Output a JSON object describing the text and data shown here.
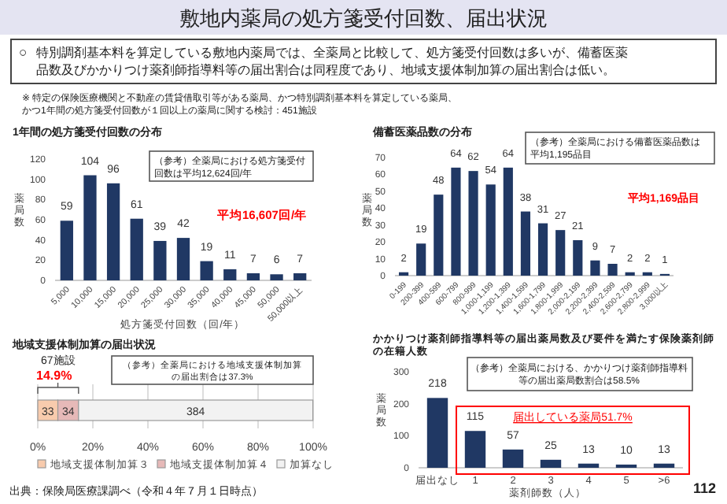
{
  "chart_data": [
    {
      "type": "other",
      "title": "敷地内薬局の処方箋受付回数、届出状況",
      "annotations": [
        "○",
        "特別調剤基本料を算定している敷地内薬局では、全薬局と比較して、処方箋受付回数は多いが、備蓄医薬品数及びかかりつけ薬剤師指導料等の届出割合は同程度であり、地域支援体制加算の届出割合は低い。",
        "※ 特定の保険医療機関と不動産の賃貸借取引等がある薬局、かつ特別調剤基本料を算定している薬局、かつ1年間の処方箋受付回数が１回以上の薬局に関する検討：451施設",
        "出典：保険局医療課調べ（令和４年７月１日時点）",
        "112"
      ]
    },
    {
      "type": "bar",
      "title": "1年間の処方箋受付回数の分布",
      "xlabel": "処方箋受付回数（回/年）",
      "ylabel": "薬局数",
      "categories": [
        "5,000",
        "10,000",
        "15,000",
        "20,000",
        "25,000",
        "30,000",
        "35,000",
        "40,000",
        "45,000",
        "50,000",
        "50,000以上"
      ],
      "values": [
        59,
        104,
        96,
        61,
        39,
        42,
        19,
        11,
        7,
        6,
        7
      ],
      "color": "#203864",
      "ylim": [
        0,
        120
      ],
      "yticks": [
        0,
        20,
        40,
        60,
        80,
        100,
        120
      ],
      "data_labels": true,
      "annotations": [
        "（参考）全薬局における処方箋受付回数は平均12,624回/年",
        "平均16,607回/年"
      ]
    },
    {
      "type": "bar",
      "title": "備蓄医薬品数の分布",
      "ylabel": "薬局数",
      "categories": [
        "0-199",
        "200-399",
        "400-599",
        "600-799",
        "800-999",
        "1,000-1,199",
        "1,200-1,399",
        "1,400-1,599",
        "1,600-1,799",
        "1,800-1,999",
        "2,000-2,199",
        "2,200-2,399",
        "2,400-2,599",
        "2,600-2,799",
        "2,800-2,999",
        "3,000以上"
      ],
      "values": [
        2,
        19,
        48,
        64,
        62,
        54,
        64,
        38,
        31,
        27,
        21,
        9,
        7,
        2,
        2,
        1
      ],
      "color": "#203864",
      "ylim": [
        0,
        70
      ],
      "yticks": [
        0,
        10,
        20,
        30,
        40,
        50,
        60,
        70
      ],
      "data_labels": true,
      "annotations": [
        "（参考）全薬局における備蓄医薬品数は平均1,195品目",
        "平均1,169品目"
      ]
    },
    {
      "type": "bar",
      "orientation": "horizontal",
      "stacked": true,
      "title": "地域支援体制加算の届出状況",
      "categories": [
        null
      ],
      "xlim": [
        0,
        100
      ],
      "xticks": [
        {
          "value": 0,
          "label": "0%"
        },
        {
          "value": 20,
          "label": "20%"
        },
        {
          "value": 40,
          "label": "40%"
        },
        {
          "value": 60,
          "label": "60%"
        },
        {
          "value": 80,
          "label": "80%"
        },
        {
          "value": 100,
          "label": "100%"
        }
      ],
      "grid": "x",
      "legend": "bottom",
      "series": [
        {
          "name": "地域支援体制加算３",
          "color": "#f8cbad",
          "values": [
            7.3
          ]
        },
        {
          "name": "地域支援体制加算４",
          "color": "#e6b9b8",
          "values": [
            7.5
          ]
        },
        {
          "name": "加算なし",
          "color": "#f2f2f2",
          "values": [
            85.1
          ]
        }
      ],
      "annotations": [
        "67施設",
        "14.9%",
        "（参考）全薬局における地域支援体制加算の届出割合は37.3%",
        "33",
        "34",
        "384"
      ]
    },
    {
      "type": "bar",
      "title": "かかりつけ薬剤師指導料等の届出薬局数及び要件を満たす保険薬剤師の在籍人数",
      "xlabel": "薬剤師数（人）",
      "ylabel": "薬局数",
      "categories": [
        "届出なし",
        "1",
        "2",
        "3",
        "4",
        "5",
        ">6"
      ],
      "values": [
        218,
        115,
        57,
        25,
        13,
        10,
        13
      ],
      "color": "#203864",
      "ylim": [
        0,
        300
      ],
      "yticks": [
        0,
        100,
        200,
        300
      ],
      "data_labels": true,
      "annotations": [
        "（参考）全薬局における、かかりつけ薬剤師指導料等の届出薬局数割合は58.5%",
        "届出している薬局51.7%"
      ]
    }
  ]
}
